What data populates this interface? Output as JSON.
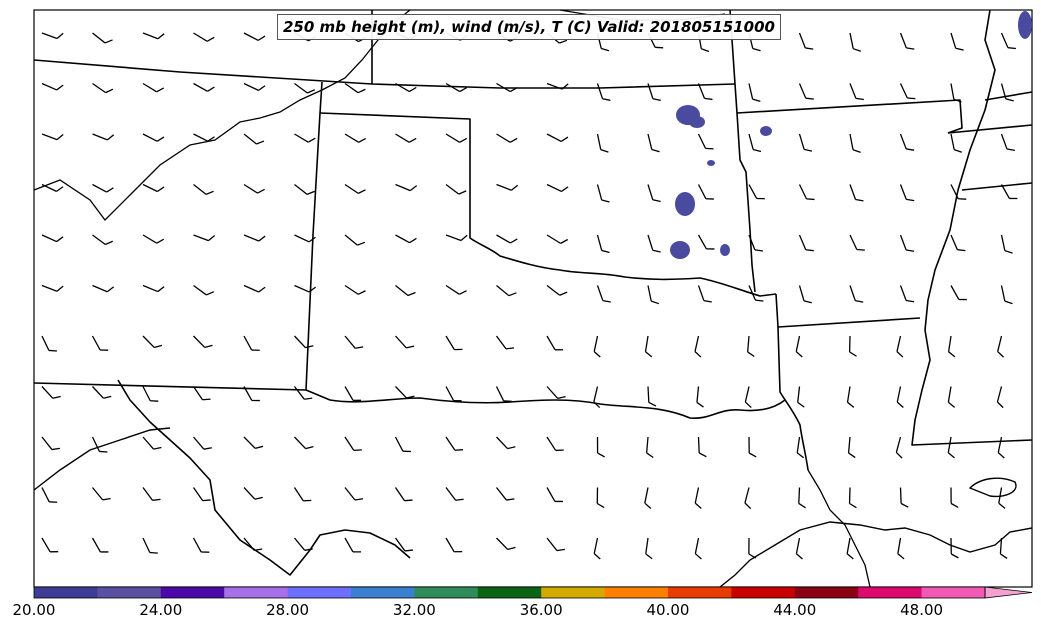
{
  "title": "250 mb height (m), wind (m/s), T (C) Valid: 201805151000",
  "colorbar": {
    "tick_labels": [
      "20.00",
      "24.00",
      "28.00",
      "32.00",
      "36.00",
      "40.00",
      "44.00",
      "48.00"
    ],
    "colors": [
      "#3d3d96",
      "#5a4fa0",
      "#4b0aa8",
      "#a870e8",
      "#6e6eff",
      "#3a7fd0",
      "#2e8c5a",
      "#0a6414",
      "#d4aa00",
      "#ff8000",
      "#e83c00",
      "#c80000",
      "#8c0014",
      "#dc0a6e",
      "#f05ab4"
    ],
    "extend_color": "#f5a0d2"
  },
  "colors": {
    "outline": "#000000",
    "temperature_shading": "#4a4a9e"
  },
  "layers": [
    "state-borders",
    "coastline",
    "rivers",
    "wind-barbs",
    "temperature-shading"
  ]
}
